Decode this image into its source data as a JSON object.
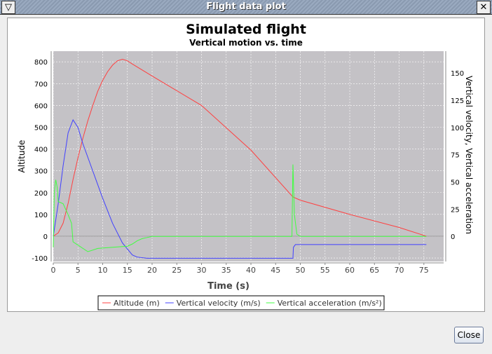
{
  "window": {
    "title": "Flight data plot",
    "menu_icon": "triangle-down-icon",
    "close_icon": "close-icon",
    "close_label": "Close"
  },
  "chart_data": {
    "type": "line",
    "title": "Simulated flight",
    "subtitle": "Vertical motion vs. time",
    "xlabel": "Time (s)",
    "ylabel_left": "Altitude",
    "ylabel_right": "Vertical velocity, Vertical acceleration",
    "xlim": [
      0,
      79
    ],
    "ylim_left": [
      -116,
      849
    ],
    "ylim_right": [
      -23,
      170
    ],
    "xticks": [
      0,
      5,
      10,
      15,
      20,
      25,
      30,
      35,
      40,
      45,
      50,
      55,
      60,
      65,
      70,
      75
    ],
    "yticks_left": [
      -100,
      0,
      100,
      200,
      300,
      400,
      500,
      600,
      700,
      800
    ],
    "yticks_right": [
      0,
      25,
      50,
      75,
      100,
      125,
      150
    ],
    "grid": true,
    "legend_position": "bottom",
    "background": "#c4c2c6",
    "series": [
      {
        "name": "Altitude (m)",
        "axis": "left",
        "color": "#ff4040",
        "x": [
          0,
          1,
          2,
          3,
          4,
          5,
          6,
          7,
          8,
          9,
          10,
          11,
          12,
          13,
          14,
          15,
          16,
          20,
          30,
          40,
          48.5,
          50,
          60,
          70,
          75.5
        ],
        "y": [
          0,
          15,
          60,
          150,
          260,
          360,
          450,
          530,
          600,
          665,
          715,
          755,
          785,
          805,
          812,
          805,
          790,
          735,
          600,
          395,
          180,
          165,
          100,
          40,
          0
        ]
      },
      {
        "name": "Vertical velocity (m/s)",
        "axis": "right",
        "color": "#4040ff",
        "x": [
          0,
          1,
          2,
          3,
          4,
          5,
          6,
          8,
          10,
          12,
          14,
          16,
          17,
          18,
          19,
          20,
          30,
          40,
          48.5,
          48.6,
          49,
          75.5
        ],
        "y": [
          0,
          30,
          65,
          95,
          107,
          100,
          85,
          60,
          35,
          12,
          -6,
          -17,
          -19,
          -19.5,
          -20,
          -20,
          -20,
          -20,
          -20,
          -10,
          -7.5,
          -7.5
        ]
      },
      {
        "name": "Vertical acceleration (m/s²)",
        "axis": "right",
        "color": "#40ff40",
        "x": [
          0,
          0.2,
          0.5,
          0.8,
          1,
          2,
          3,
          3.7,
          4,
          5,
          7,
          9,
          12,
          15,
          16,
          17,
          18,
          19,
          20,
          30,
          48.3,
          48.5,
          48.8,
          49.3,
          50,
          75.5
        ],
        "y": [
          -10,
          40,
          52,
          45,
          32,
          30,
          20,
          12,
          -5,
          -8,
          -14,
          -11,
          -10,
          -9,
          -7,
          -4,
          -2,
          -1,
          0,
          0,
          0,
          66,
          20,
          2,
          0,
          0
        ]
      }
    ]
  }
}
